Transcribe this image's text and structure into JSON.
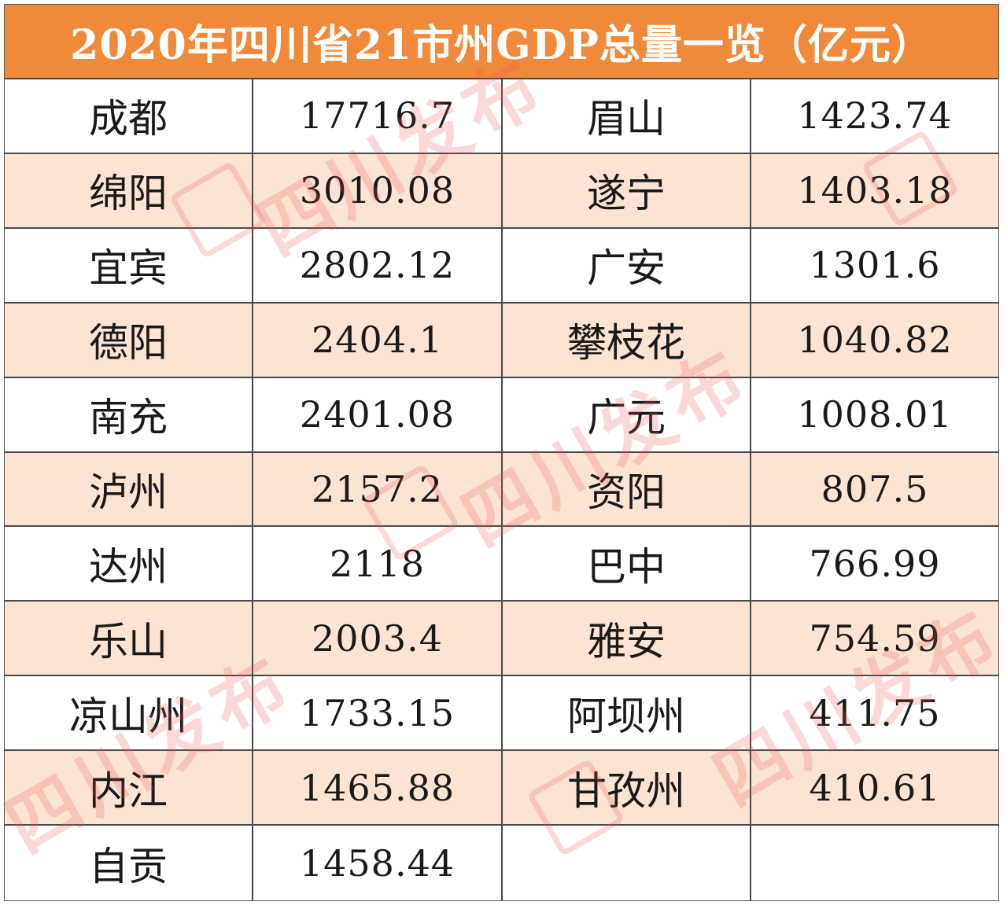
{
  "title": "2020年四川省21市州GDP总量一览（亿元）",
  "rows": [
    {
      "city1": "成都",
      "gdp1": "17716.7",
      "city2": "眉山",
      "gdp2": "1423.74"
    },
    {
      "city1": "绵阳",
      "gdp1": "3010.08",
      "city2": "遂宁",
      "gdp2": "1403.18"
    },
    {
      "city1": "宜宾",
      "gdp1": "2802.12",
      "city2": "广安",
      "gdp2": "1301.6"
    },
    {
      "city1": "德阳",
      "gdp1": "2404.1",
      "city2": "攀枝花",
      "gdp2": "1040.82"
    },
    {
      "city1": "南充",
      "gdp1": "2401.08",
      "city2": "广元",
      "gdp2": "1008.01"
    },
    {
      "city1": "泸州",
      "gdp1": "2157.2",
      "city2": "资阳",
      "gdp2": "807.5"
    },
    {
      "city1": "达州",
      "gdp1": "2118",
      "city2": "巴中",
      "gdp2": "766.99"
    },
    {
      "city1": "乐山",
      "gdp1": "2003.4",
      "city2": "雅安",
      "gdp2": "754.59"
    },
    {
      "city1": "凉山州",
      "gdp1": "1733.15",
      "city2": "阿坝州",
      "gdp2": "411.75"
    },
    {
      "city1": "内江",
      "gdp1": "1465.88",
      "city2": "甘孜州",
      "gdp2": "410.61"
    },
    {
      "city1": "自贡",
      "gdp1": "1458.44",
      "city2": "",
      "gdp2": ""
    }
  ],
  "watermark": "四川发布",
  "colors": {
    "header_bg": "#f08a3a",
    "row_shade": "#fbe4d4",
    "grid_line": "#4a4a4a"
  }
}
